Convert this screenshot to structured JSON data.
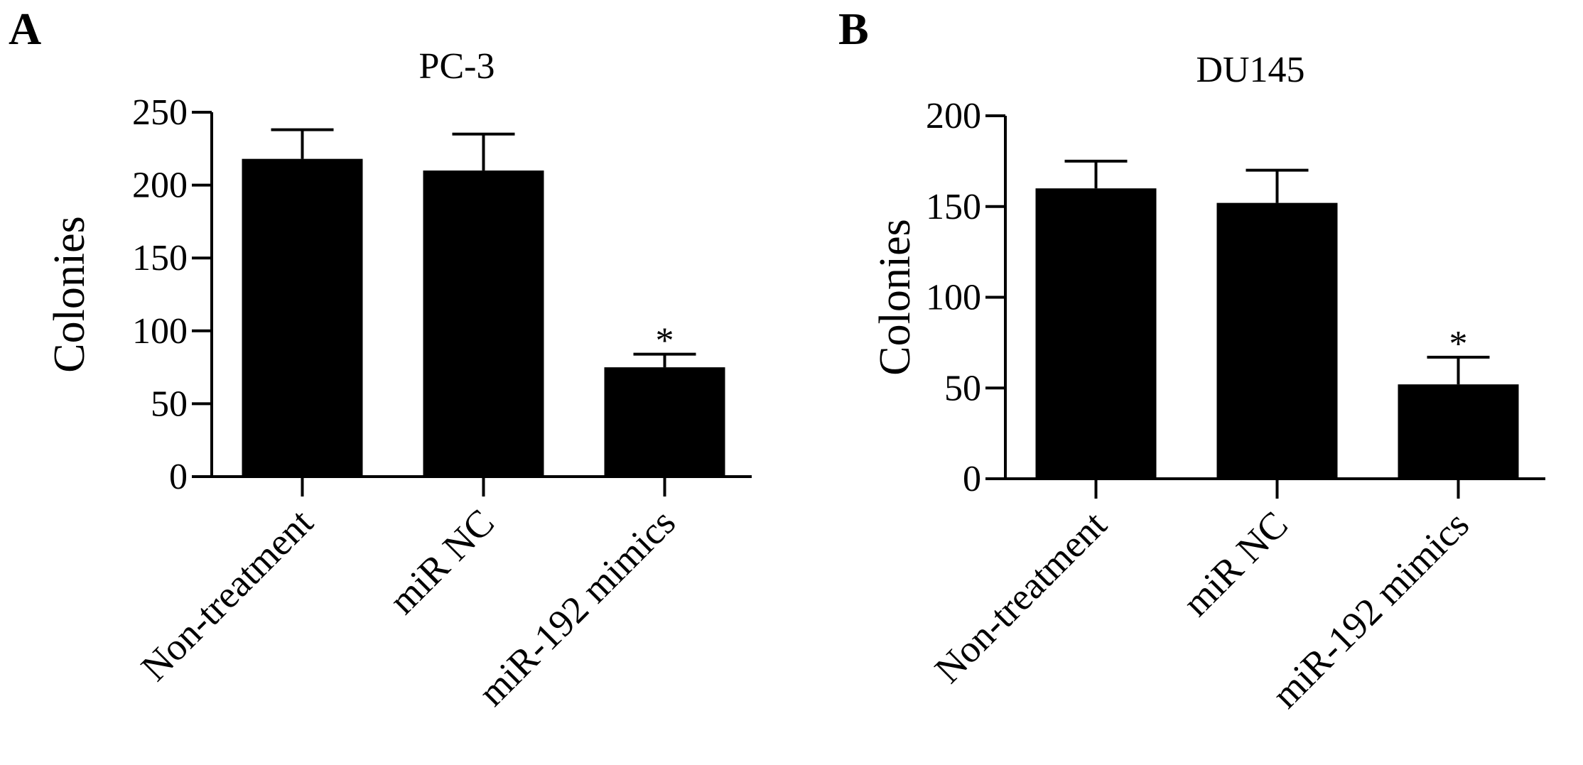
{
  "figure": {
    "panels": [
      {
        "letter": "A"
      },
      {
        "letter": "B"
      }
    ]
  },
  "chart_data": [
    {
      "type": "bar",
      "title": "PC-3",
      "xlabel": "",
      "ylabel": "Colonies",
      "ylim": [
        0,
        250
      ],
      "yticks": [
        0,
        50,
        100,
        150,
        200,
        250
      ],
      "categories": [
        "Non-treatment",
        "miR NC",
        "miR-192 mimics"
      ],
      "values": [
        218,
        210,
        75
      ],
      "errors": [
        20,
        25,
        9
      ],
      "annotations": [
        "",
        "",
        "*"
      ],
      "bar_color": "#000000",
      "grid": false,
      "legend": "none"
    },
    {
      "type": "bar",
      "title": "DU145",
      "xlabel": "",
      "ylabel": "Colonies",
      "ylim": [
        0,
        200
      ],
      "yticks": [
        0,
        50,
        100,
        150,
        200
      ],
      "categories": [
        "Non-treatment",
        "miR NC",
        "miR-192 mimics"
      ],
      "values": [
        160,
        152,
        52
      ],
      "errors": [
        15,
        18,
        15
      ],
      "annotations": [
        "",
        "",
        "*"
      ],
      "bar_color": "#000000",
      "grid": false,
      "legend": "none"
    }
  ]
}
